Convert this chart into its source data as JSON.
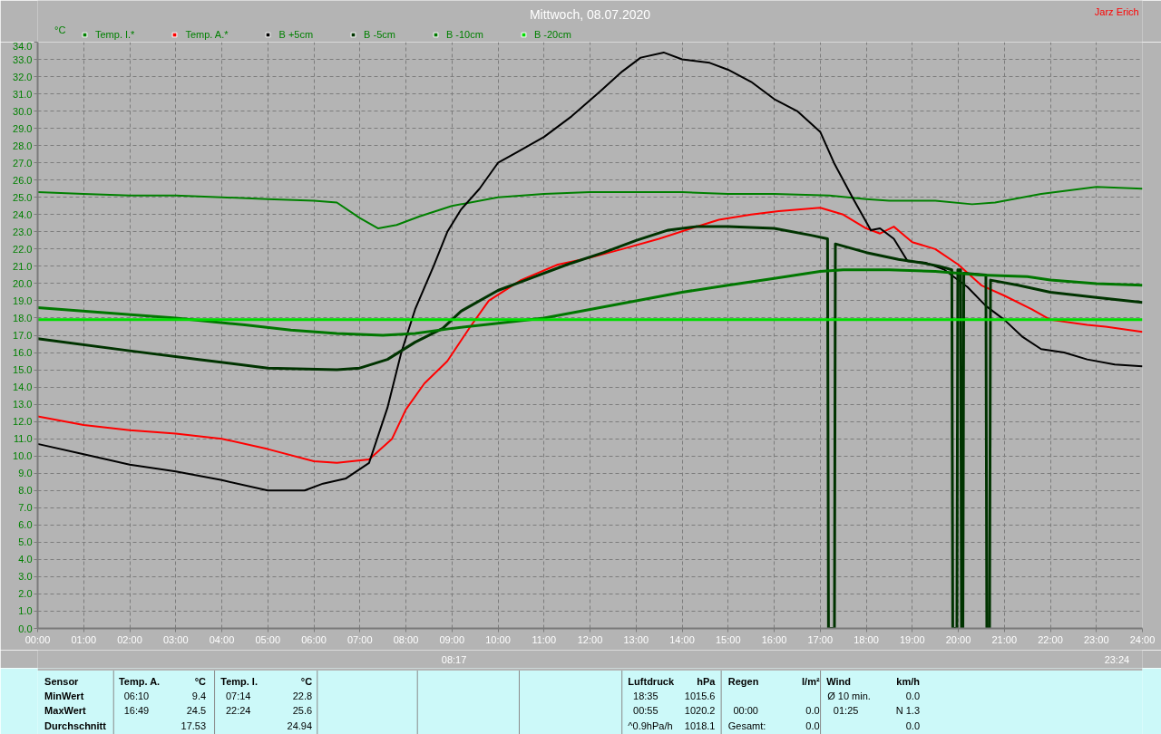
{
  "chart_data": {
    "type": "line",
    "title": "Mittwoch, 08.07.2020",
    "legend": "top left",
    "grid": true,
    "marker": "none",
    "line_style": "solid",
    "xlim": [
      0,
      24
    ],
    "ylim": [
      0,
      34
    ],
    "xticks": [
      {
        "value": 0,
        "label": "00:00"
      },
      {
        "value": 1,
        "label": "01:00"
      },
      {
        "value": 2,
        "label": "02:00"
      },
      {
        "value": 3,
        "label": "03:00"
      },
      {
        "value": 4,
        "label": "04:00"
      },
      {
        "value": 5,
        "label": "05:00"
      },
      {
        "value": 6,
        "label": "06:00"
      },
      {
        "value": 7,
        "label": "07:00"
      },
      {
        "value": 8,
        "label": "08:00"
      },
      {
        "value": 9,
        "label": "09:00"
      },
      {
        "value": 10,
        "label": "10:00"
      },
      {
        "value": 11,
        "label": "11:00"
      },
      {
        "value": 12,
        "label": "12:00"
      },
      {
        "value": 13,
        "label": "13:00"
      },
      {
        "value": 14,
        "label": "14:00"
      },
      {
        "value": 15,
        "label": "15:00"
      },
      {
        "value": 16,
        "label": "16:00"
      },
      {
        "value": 17,
        "label": "17:00"
      },
      {
        "value": 18,
        "label": "18:00"
      },
      {
        "value": 19,
        "label": "19:00"
      },
      {
        "value": 20,
        "label": "20:00"
      },
      {
        "value": 21,
        "label": "21:00"
      },
      {
        "value": 22,
        "label": "22:00"
      },
      {
        "value": 23,
        "label": "23:00"
      },
      {
        "value": 24,
        "label": "24:00"
      }
    ],
    "yticks": [
      {
        "value": 0,
        "label": "0.0"
      },
      {
        "value": 1,
        "label": "1.0"
      },
      {
        "value": 2,
        "label": "2.0"
      },
      {
        "value": 3,
        "label": "3.0"
      },
      {
        "value": 4,
        "label": "4.0"
      },
      {
        "value": 5,
        "label": "5.0"
      },
      {
        "value": 6,
        "label": "6.0"
      },
      {
        "value": 7,
        "label": "7.0"
      },
      {
        "value": 8,
        "label": "8.0"
      },
      {
        "value": 9,
        "label": "9.0"
      },
      {
        "value": 10,
        "label": "10.0"
      },
      {
        "value": 11,
        "label": "11.0"
      },
      {
        "value": 12,
        "label": "12.0"
      },
      {
        "value": 13,
        "label": "13.0"
      },
      {
        "value": 14,
        "label": "14.0"
      },
      {
        "value": 15,
        "label": "15.0"
      },
      {
        "value": 16,
        "label": "16.0"
      },
      {
        "value": 17,
        "label": "17.0"
      },
      {
        "value": 18,
        "label": "18.0"
      },
      {
        "value": 19,
        "label": "19.0"
      },
      {
        "value": 20,
        "label": "20.0"
      },
      {
        "value": 21,
        "label": "21.0"
      },
      {
        "value": 22,
        "label": "22.0"
      },
      {
        "value": 23,
        "label": "23.0"
      },
      {
        "value": 24,
        "label": "24.0"
      },
      {
        "value": 25,
        "label": "25.0"
      },
      {
        "value": 26,
        "label": "26.0"
      },
      {
        "value": 27,
        "label": "27.0"
      },
      {
        "value": 28,
        "label": "28.0"
      },
      {
        "value": 29,
        "label": "29.0"
      },
      {
        "value": 30,
        "label": "30.0"
      },
      {
        "value": 31,
        "label": "31.0"
      },
      {
        "value": 32,
        "label": "32.0"
      },
      {
        "value": 33,
        "label": "33.0"
      },
      {
        "value": 34,
        "label": "34.0"
      }
    ],
    "series": [
      {
        "name": "Temp. I.*",
        "color": "#008000",
        "x": [
          0,
          1,
          2,
          3,
          4,
          5,
          6,
          6.5,
          7,
          7.4,
          7.8,
          8.3,
          9,
          10,
          11,
          12,
          13,
          14,
          15,
          16,
          17.2,
          18,
          18.5,
          19.5,
          20.3,
          20.8,
          21.8,
          23,
          24
        ],
        "values": [
          25.3,
          25.2,
          25.1,
          25.1,
          25.0,
          24.9,
          24.8,
          24.7,
          23.8,
          23.2,
          23.4,
          23.9,
          24.5,
          25.0,
          25.2,
          25.3,
          25.3,
          25.3,
          25.2,
          25.2,
          25.1,
          24.9,
          24.8,
          24.8,
          24.6,
          24.7,
          25.2,
          25.6,
          25.5
        ]
      },
      {
        "name": "Temp. A.*",
        "color": "#ff0000",
        "x": [
          0,
          1,
          2,
          3,
          4,
          5,
          6,
          6.5,
          7.2,
          7.7,
          8.0,
          8.4,
          8.9,
          9.4,
          9.8,
          10.5,
          11.3,
          12,
          12.7,
          13.5,
          14.2,
          14.8,
          15.5,
          16.1,
          17,
          17.5,
          18,
          18.3,
          18.6,
          19.0,
          19.5,
          20.0,
          20.5,
          21.0,
          21.6,
          22,
          22.8,
          23.2,
          24
        ],
        "values": [
          12.3,
          11.8,
          11.5,
          11.3,
          11.0,
          10.4,
          9.7,
          9.6,
          9.8,
          11.0,
          12.7,
          14.2,
          15.5,
          17.5,
          19.0,
          20.2,
          21.1,
          21.5,
          22.0,
          22.6,
          23.2,
          23.7,
          24.0,
          24.2,
          24.4,
          24.0,
          23.2,
          22.9,
          23.3,
          22.4,
          22.0,
          21.1,
          19.9,
          19.3,
          18.5,
          17.9,
          17.6,
          17.5,
          17.2
        ]
      },
      {
        "name": "B +5cm",
        "color": "#000000",
        "x": [
          0,
          1,
          2,
          3,
          4,
          5,
          5.8,
          6.2,
          6.7,
          7.2,
          7.6,
          7.9,
          8.2,
          8.6,
          8.9,
          9.2,
          9.6,
          10.0,
          10.4,
          11,
          11.6,
          12.2,
          12.7,
          13.1,
          13.6,
          14.0,
          14.6,
          15.0,
          15.5,
          16.0,
          16.5,
          17.0,
          17.3,
          17.7,
          18.1,
          18.3,
          18.6,
          18.9,
          19.3,
          19.7,
          20.2,
          20.6,
          21.0,
          21.4,
          21.8,
          22.3,
          22.8,
          23.4,
          24
        ],
        "values": [
          10.7,
          10.1,
          9.5,
          9.1,
          8.6,
          8.0,
          8.0,
          8.4,
          8.7,
          9.6,
          12.8,
          16.0,
          18.5,
          21.0,
          23.0,
          24.3,
          25.5,
          27.0,
          27.6,
          28.5,
          29.7,
          31.1,
          32.3,
          33.1,
          33.4,
          33.0,
          32.8,
          32.4,
          31.7,
          30.7,
          30.0,
          28.8,
          27.0,
          25.0,
          23.1,
          23.2,
          22.6,
          21.3,
          21.2,
          20.8,
          19.8,
          18.7,
          17.9,
          16.9,
          16.2,
          16.0,
          15.6,
          15.3,
          15.2
        ]
      },
      {
        "name": "B -5cm",
        "color": "#003300",
        "x": [
          0,
          2,
          3.5,
          5,
          6.5,
          7.0,
          7.6,
          8.2,
          8.8,
          9.2,
          10.0,
          10.6,
          11.5,
          12.3,
          13.0,
          13.7,
          14.3,
          15,
          16,
          16.8,
          17.16,
          17.18,
          17.31,
          17.33,
          18.0,
          18.7,
          19.2,
          19.6,
          19.86,
          19.88,
          19.97,
          19.99,
          20.05,
          20.07,
          20.1,
          20.12,
          20.6,
          20.62,
          20.68,
          20.7,
          21.3,
          22.0,
          23.0,
          24
        ],
        "values": [
          16.8,
          16.1,
          15.6,
          15.1,
          15.0,
          15.1,
          15.6,
          16.6,
          17.4,
          18.4,
          19.6,
          20.2,
          21.1,
          21.8,
          22.5,
          23.1,
          23.3,
          23.3,
          23.2,
          22.8,
          22.6,
          0,
          0,
          22.3,
          21.8,
          21.4,
          21.2,
          21.0,
          20.8,
          0,
          0,
          20.8,
          20.8,
          0,
          0,
          20.6,
          20.5,
          0,
          0,
          20.2,
          19.9,
          19.5,
          19.2,
          18.9
        ]
      },
      {
        "name": "B -10cm",
        "color": "#007700",
        "x": [
          0,
          1.5,
          3,
          4.5,
          5.5,
          6.5,
          7.5,
          8.2,
          9,
          10,
          11,
          12,
          13,
          14,
          15,
          16,
          17,
          17.5,
          18.5,
          19.5,
          20,
          20.5,
          21.5,
          22,
          23,
          24
        ],
        "values": [
          18.6,
          18.3,
          18.0,
          17.6,
          17.3,
          17.1,
          17.0,
          17.1,
          17.4,
          17.7,
          18.0,
          18.5,
          19.0,
          19.5,
          19.9,
          20.3,
          20.7,
          20.8,
          20.8,
          20.7,
          20.6,
          20.5,
          20.4,
          20.2,
          20.0,
          19.9
        ]
      },
      {
        "name": "B -20cm",
        "color": "#00dd00",
        "x": [
          0,
          24
        ],
        "values": [
          17.9,
          17.9
        ]
      }
    ],
    "annotations": [
      "Jarz Erich",
      "°C",
      "08:17",
      "23:24",
      "Sensor",
      "Temp. A.",
      "°C",
      "Temp. I.",
      "°C",
      "MinWert",
      "06:10",
      "9.4",
      "07:14",
      "22.8",
      "MaxWert",
      "16:49",
      "24.5",
      "22:24",
      "25.6",
      "Durchschnitt",
      "17.53",
      "24.94",
      "Luftdruck",
      "hPa",
      "Regen",
      "l/m²",
      "Wind",
      "km/h",
      "18:35",
      "1015.6",
      "Ø 10 min.",
      "0.0",
      "00:55",
      "1020.2",
      "00:00",
      "0.0",
      "01:25",
      "N 1.3",
      "^0.9hPa/h",
      "1018.1",
      "Gesamt:",
      "0.0",
      "0.0"
    ]
  }
}
